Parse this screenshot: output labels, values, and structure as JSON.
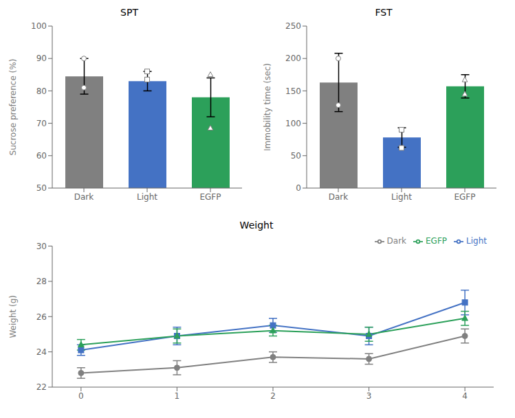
{
  "chart_data": [
    {
      "type": "bar",
      "title": "SPT",
      "categories": [
        "Dark",
        "Light",
        "EGFP"
      ],
      "values": [
        84.5,
        83.0,
        78.0
      ],
      "errors": [
        5.5,
        3.0,
        6.0
      ],
      "points": [
        [
          81.0,
          90.0
        ],
        [
          83.5,
          86.0
        ],
        [
          68.5,
          85.0
        ]
      ],
      "colors": [
        "#808080",
        "#4472C4",
        "#2CA05A"
      ],
      "ylim": [
        50,
        100
      ],
      "yticks": [
        50,
        60,
        70,
        80,
        90,
        100
      ],
      "ylabel": "Sucrose preference (%)"
    },
    {
      "type": "bar",
      "title": "FST",
      "categories": [
        "Dark",
        "Light",
        "EGFP"
      ],
      "values": [
        163.0,
        78.0,
        157.0
      ],
      "errors": [
        45.0,
        15.0,
        18.0
      ],
      "points": [
        [
          128.0,
          200.0
        ],
        [
          62.0,
          90.0
        ],
        [
          145.0,
          167.0
        ]
      ],
      "colors": [
        "#808080",
        "#4472C4",
        "#2CA05A"
      ],
      "ylim": [
        0,
        250
      ],
      "yticks": [
        0,
        50,
        100,
        150,
        200,
        250
      ],
      "ylabel": "Immobility time (sec)"
    },
    {
      "type": "line",
      "title": "Weight",
      "x": [
        0,
        1,
        2,
        3,
        4
      ],
      "xlim": [
        -0.3,
        4.3
      ],
      "xticks": [
        0,
        1,
        2,
        3,
        4
      ],
      "ylim": [
        22,
        30
      ],
      "yticks": [
        22,
        24,
        26,
        28,
        30
      ],
      "ylabel": "Weight (g)",
      "legend": "upper right",
      "series": [
        {
          "name": "Dark",
          "color": "#808080",
          "marker": "circle",
          "values": [
            22.8,
            23.1,
            23.7,
            23.6,
            24.9
          ],
          "errors": [
            0.3,
            0.4,
            0.3,
            0.3,
            0.4
          ]
        },
        {
          "name": "Light",
          "color": "#4472C4",
          "marker": "square",
          "values": [
            24.1,
            24.9,
            25.5,
            24.9,
            26.8
          ],
          "errors": [
            0.3,
            0.5,
            0.4,
            0.5,
            0.7
          ]
        },
        {
          "name": "EGFP",
          "color": "#2CA05A",
          "marker": "triangle",
          "values": [
            24.4,
            24.9,
            25.2,
            25.0,
            25.9
          ],
          "errors": [
            0.3,
            0.4,
            0.3,
            0.4,
            0.4
          ]
        }
      ]
    }
  ]
}
